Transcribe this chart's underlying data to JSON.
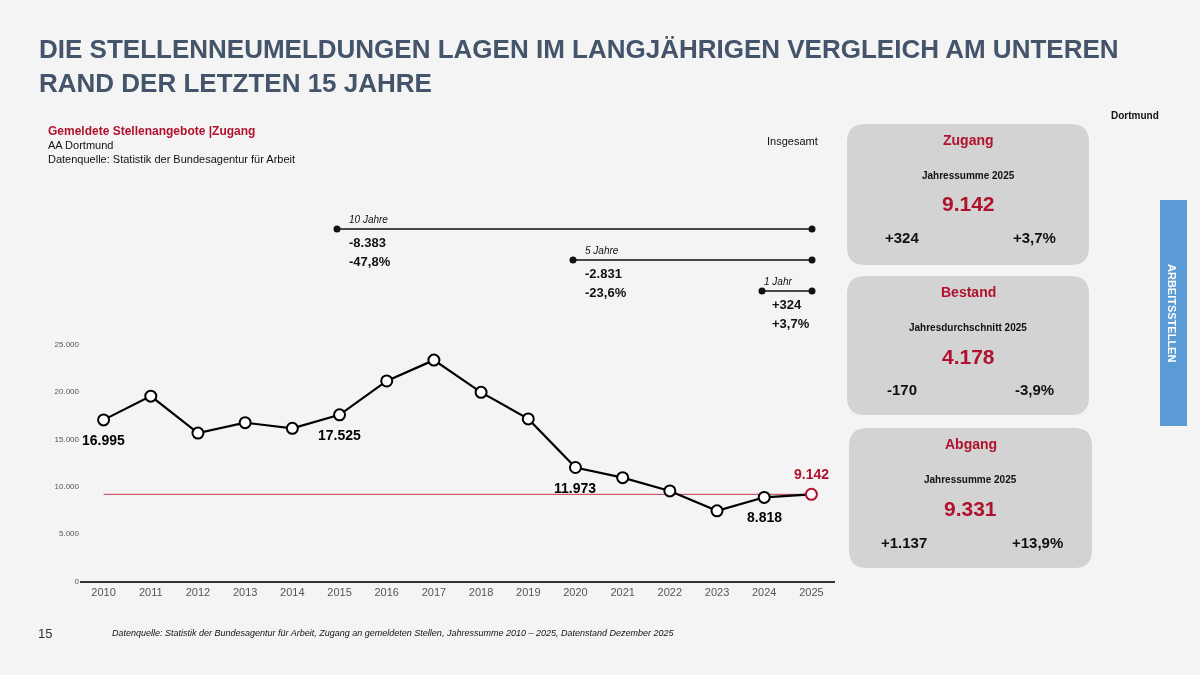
{
  "chart_data": [
    {
      "type": "line",
      "title": "DIE STELLENNEUMELDUNGEN LAGEN IM LANGJÄHRIGEN VERGLEICH AM UNTEREN RAND DER LETZTEN 15 JAHRE",
      "subtitle": "Gemeldete Stellenangebote |Zugang",
      "categories": [
        "2010",
        "2011",
        "2012",
        "2013",
        "2014",
        "2015",
        "2016",
        "2017",
        "2018",
        "2019",
        "2020",
        "2021",
        "2022",
        "2023",
        "2024",
        "2025"
      ],
      "series": [
        {
          "color": "#000000",
          "colors": [
            "#000000",
            "#000000",
            "#000000",
            "#000000",
            "#000000",
            "#000000",
            "#000000",
            "#000000",
            "#000000",
            "#000000",
            "#000000",
            "#000000",
            "#000000",
            "#000000",
            "#000000",
            "#b0122d"
          ],
          "values": [
            16995,
            19500,
            15600,
            16700,
            16100,
            17525,
            21100,
            23300,
            19900,
            17100,
            11973,
            10900,
            9500,
            7400,
            8818,
            9142
          ],
          "value_labels": [
            "16.995",
            null,
            null,
            null,
            null,
            "17.525",
            null,
            null,
            null,
            null,
            "11.973",
            null,
            null,
            null,
            "8.818",
            "9.142"
          ]
        }
      ],
      "ylim": [
        0,
        25000
      ],
      "yticks": [
        0,
        {
          "value": 5000,
          "label": "5.000"
        },
        {
          "value": 10000,
          "label": "10.000"
        },
        {
          "value": 15000,
          "label": "15.000"
        },
        {
          "value": 20000,
          "label": "20.000"
        },
        {
          "value": 25000,
          "label": "25.000"
        }
      ],
      "grid": false,
      "marker": "circle",
      "line_style": "solid",
      "ref_lines": [
        {
          "axis": "y",
          "value": 9142,
          "color": "#c0394f"
        }
      ],
      "annotations": [
        "AA Dortmund",
        "Datenquelle: Statistik der Bundesagentur für Arbeit",
        "Insgesamt",
        "Datenquelle: Statistik der Bundesagentur für Arbeit, Zugang an gemeldeten Stellen, Jahressumme 2010 – 2025, Datenstand Dezember 2025",
        "10 Jahre",
        "-8.383",
        "-47,8%",
        "5 Jahre",
        "-2.831",
        "-23,6%",
        "1 Jahr",
        "+324",
        "+3,7%"
      ]
    },
    {
      "type": "other",
      "annotations": [
        "Zugang",
        "Jahressumme 2025",
        "9.142",
        "+324",
        "+3,7%",
        "Bestand",
        "Jahresdurchschnitt 2025",
        "4.178",
        "-170",
        "-3,9%",
        "Abgang",
        "Jahressumme 2025",
        "9.331",
        "+1.137",
        "+13,9%",
        "Dortmund",
        "ARBEITSSTELLEN",
        "15"
      ]
    }
  ]
}
